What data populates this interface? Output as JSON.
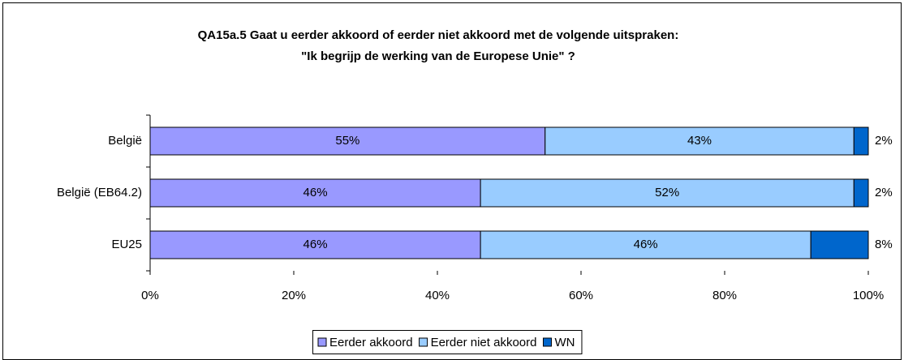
{
  "chart_data": {
    "type": "stacked-bar-horizontal",
    "title": [
      "QA15a.5 Gaat u eerder akkoord of eerder niet akkoord met de volgende uitspraken:",
      "\"Ik begrijp de werking van de Europese Unie\" ?"
    ],
    "categories": [
      "België",
      "België (EB64.2)",
      "EU25"
    ],
    "series": [
      {
        "name": "Eerder akkoord",
        "color": "#9999ff",
        "values": [
          55,
          46,
          46
        ],
        "value_labels": [
          "55%",
          "46%",
          "46%"
        ]
      },
      {
        "name": "Eerder niet akkoord",
        "color": "#99ccff",
        "values": [
          43,
          52,
          46
        ],
        "value_labels": [
          "43%",
          "52%",
          "46%"
        ]
      },
      {
        "name": "WN",
        "color": "#0066cc",
        "values": [
          2,
          2,
          8
        ],
        "value_labels": [
          "2%",
          "2%",
          "8%"
        ]
      }
    ],
    "xlim": [
      0,
      100
    ],
    "xticks": [
      {
        "value": 0,
        "label": "0%"
      },
      {
        "value": 20,
        "label": "20%"
      },
      {
        "value": 40,
        "label": "40%"
      },
      {
        "value": 60,
        "label": "60%"
      },
      {
        "value": 80,
        "label": "80%"
      },
      {
        "value": 100,
        "label": "100%"
      }
    ],
    "legend": "bottom"
  }
}
